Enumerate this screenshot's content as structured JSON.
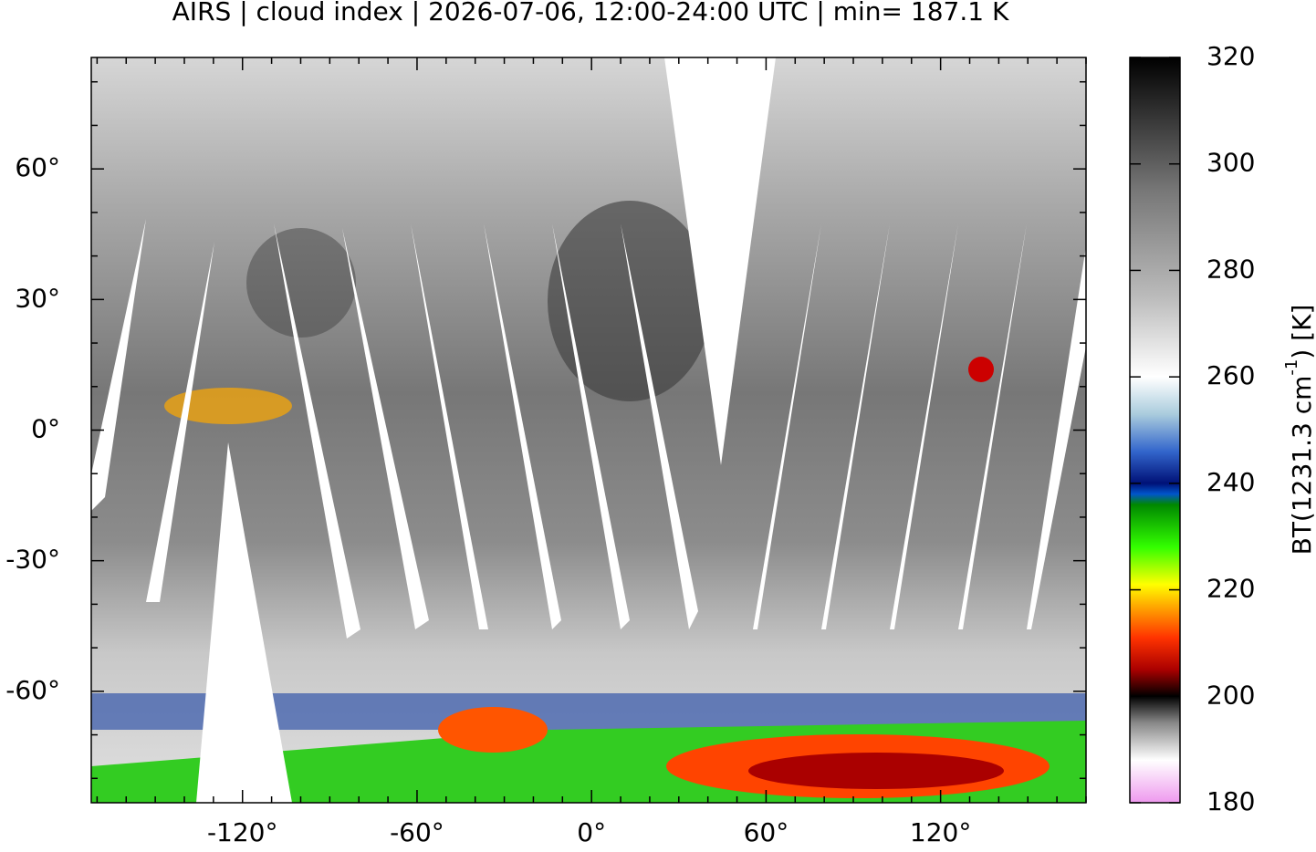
{
  "chart_data": {
    "type": "map",
    "title": "AIRS | cloud index | 2026-07-06, 12:00-24:00 UTC | min= 187.1 K",
    "xlim": [
      -172,
      170
    ],
    "ylim": [
      -85.6,
      85.6
    ],
    "xticks": [
      {
        "value": -120,
        "label": "-120°"
      },
      {
        "value": -60,
        "label": "-60°"
      },
      {
        "value": 0,
        "label": "0°"
      },
      {
        "value": 60,
        "label": "60°"
      },
      {
        "value": 120,
        "label": "120°"
      }
    ],
    "yticks": [
      {
        "value": -60,
        "label": "-60°"
      },
      {
        "value": -30,
        "label": "-30°"
      },
      {
        "value": 0,
        "label": "0°"
      },
      {
        "value": 30,
        "label": "30°"
      },
      {
        "value": 60,
        "label": "60°"
      }
    ],
    "xminorticks": [
      -170,
      -160,
      -150,
      -140,
      -130,
      -110,
      -100,
      -90,
      -80,
      -70,
      -50,
      -40,
      -30,
      -20,
      -10,
      10,
      20,
      30,
      40,
      50,
      70,
      80,
      90,
      100,
      110,
      130,
      140,
      150,
      160,
      170
    ],
    "yminorticks": [
      -80,
      -70,
      -50,
      -40,
      -20,
      -10,
      10,
      20,
      40,
      50,
      70,
      80
    ],
    "colorbar": {
      "lim": [
        180,
        320
      ],
      "ticks": [
        180,
        200,
        220,
        240,
        260,
        280,
        300,
        320
      ],
      "label": {
        "prefix": "BT(1231.3 cm",
        "superscript": "-1",
        "suffix": ") [K]"
      },
      "colormap": [
        {
          "value": 180,
          "color": "#ee99ee"
        },
        {
          "value": 188,
          "color": "#ffffff"
        },
        {
          "value": 195,
          "color": "#888888"
        },
        {
          "value": 200,
          "color": "#000000"
        },
        {
          "value": 205,
          "color": "#aa0000"
        },
        {
          "value": 211,
          "color": "#ff3300"
        },
        {
          "value": 217,
          "color": "#ffaa00"
        },
        {
          "value": 221,
          "color": "#ffff00"
        },
        {
          "value": 228,
          "color": "#33ff00"
        },
        {
          "value": 236,
          "color": "#008800"
        },
        {
          "value": 238,
          "color": "#0055cc"
        },
        {
          "value": 240,
          "color": "#001177"
        },
        {
          "value": 246,
          "color": "#3366cc"
        },
        {
          "value": 253,
          "color": "#aaccdd"
        },
        {
          "value": 260,
          "color": "#ffffff"
        },
        {
          "value": 275,
          "color": "#bbbbbb"
        },
        {
          "value": 295,
          "color": "#777777"
        },
        {
          "value": 320,
          "color": "#000000"
        }
      ]
    }
  }
}
